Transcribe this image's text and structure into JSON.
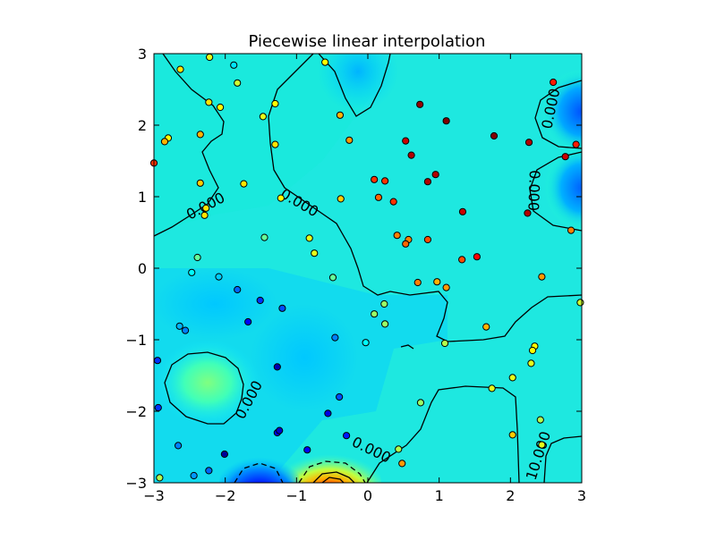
{
  "chart_data": {
    "type": "scatter",
    "title": "Piecewise linear interpolation",
    "xlabel": "",
    "ylabel": "",
    "xlim": [
      -3,
      3
    ],
    "ylim": [
      -3,
      3
    ],
    "xticks": [
      "−3",
      "−2",
      "−1",
      "0",
      "1",
      "2",
      "3"
    ],
    "yticks": [
      "−3",
      "−2",
      "−1",
      "0",
      "1",
      "2",
      "3"
    ],
    "grid": false,
    "colormap": "jet",
    "zrange": [
      -2,
      2
    ],
    "contour_labels": [
      "0.000",
      "0.000",
      "0.000",
      "0.000",
      "0.000",
      "0.000",
      "10.000"
    ],
    "points": [
      {
        "x": -2.22,
        "y": 2.95,
        "z": 0.4
      },
      {
        "x": -2.63,
        "y": 2.78,
        "z": 0.6
      },
      {
        "x": -1.88,
        "y": 2.84,
        "z": -0.6
      },
      {
        "x": -1.83,
        "y": 2.59,
        "z": 0.3
      },
      {
        "x": -0.6,
        "y": 2.88,
        "z": 0.5
      },
      {
        "x": -2.23,
        "y": 2.32,
        "z": 0.6
      },
      {
        "x": -2.07,
        "y": 2.25,
        "z": 0.5
      },
      {
        "x": -1.3,
        "y": 2.3,
        "z": 0.5
      },
      {
        "x": -1.47,
        "y": 2.12,
        "z": 0.4
      },
      {
        "x": -2.8,
        "y": 1.82,
        "z": 0.5
      },
      {
        "x": -2.85,
        "y": 1.77,
        "z": 0.8
      },
      {
        "x": -2.35,
        "y": 1.87,
        "z": 0.8
      },
      {
        "x": -1.3,
        "y": 1.73,
        "z": 0.6
      },
      {
        "x": -3.0,
        "y": 1.47,
        "z": 1.3
      },
      {
        "x": -0.39,
        "y": 2.14,
        "z": 0.8
      },
      {
        "x": -0.26,
        "y": 1.79,
        "z": 0.9
      },
      {
        "x": 0.53,
        "y": 1.78,
        "z": 1.7
      },
      {
        "x": 0.73,
        "y": 2.29,
        "z": 1.9
      },
      {
        "x": 1.1,
        "y": 2.06,
        "z": 2.0
      },
      {
        "x": 1.77,
        "y": 1.85,
        "z": 2.1
      },
      {
        "x": 2.26,
        "y": 1.76,
        "z": 1.8
      },
      {
        "x": 2.6,
        "y": 2.6,
        "z": 1.4
      },
      {
        "x": 2.92,
        "y": 1.73,
        "z": 1.4
      },
      {
        "x": 2.77,
        "y": 1.56,
        "z": 1.7
      },
      {
        "x": 0.61,
        "y": 1.58,
        "z": 1.8
      },
      {
        "x": 0.95,
        "y": 1.31,
        "z": 1.8
      },
      {
        "x": 0.84,
        "y": 1.21,
        "z": 1.8
      },
      {
        "x": 0.09,
        "y": 1.24,
        "z": 1.3
      },
      {
        "x": 0.24,
        "y": 1.22,
        "z": 1.3
      },
      {
        "x": 0.15,
        "y": 0.99,
        "z": 1.1
      },
      {
        "x": 0.36,
        "y": 0.93,
        "z": 1.3
      },
      {
        "x": -0.38,
        "y": 0.97,
        "z": 0.7
      },
      {
        "x": -2.35,
        "y": 1.19,
        "z": 0.7
      },
      {
        "x": -1.74,
        "y": 1.18,
        "z": 0.6
      },
      {
        "x": -1.22,
        "y": 0.98,
        "z": 0.5
      },
      {
        "x": -2.27,
        "y": 0.84,
        "z": 0.6
      },
      {
        "x": -2.29,
        "y": 0.74,
        "z": 0.6
      },
      {
        "x": 1.33,
        "y": 0.79,
        "z": 1.7
      },
      {
        "x": 2.24,
        "y": 0.77,
        "z": 1.8
      },
      {
        "x": 2.85,
        "y": 0.53,
        "z": 1.0
      },
      {
        "x": 0.41,
        "y": 0.46,
        "z": 1.0
      },
      {
        "x": 0.57,
        "y": 0.4,
        "z": 1.0
      },
      {
        "x": 0.53,
        "y": 0.34,
        "z": 1.1
      },
      {
        "x": 0.84,
        "y": 0.4,
        "z": 1.2
      },
      {
        "x": 1.32,
        "y": 0.12,
        "z": 1.2
      },
      {
        "x": 1.53,
        "y": 0.16,
        "z": 1.5
      },
      {
        "x": -1.45,
        "y": 0.43,
        "z": -0.1
      },
      {
        "x": -0.82,
        "y": 0.42,
        "z": 0.4
      },
      {
        "x": -0.75,
        "y": 0.21,
        "z": 0.4
      },
      {
        "x": -2.39,
        "y": 0.15,
        "z": -0.1
      },
      {
        "x": -2.47,
        "y": -0.06,
        "z": -0.5
      },
      {
        "x": -2.09,
        "y": -0.12,
        "z": -0.7
      },
      {
        "x": -0.49,
        "y": -0.13,
        "z": -0.1
      },
      {
        "x": 0.7,
        "y": -0.2,
        "z": 1.0
      },
      {
        "x": 0.97,
        "y": -0.19,
        "z": 0.8
      },
      {
        "x": 1.1,
        "y": -0.27,
        "z": 0.9
      },
      {
        "x": 2.44,
        "y": -0.12,
        "z": 0.9
      },
      {
        "x": -1.83,
        "y": -0.3,
        "z": -1.1
      },
      {
        "x": -1.51,
        "y": -0.45,
        "z": -1.3
      },
      {
        "x": -1.2,
        "y": -0.56,
        "z": -1.2
      },
      {
        "x": 0.23,
        "y": -0.5,
        "z": 0.1
      },
      {
        "x": 0.09,
        "y": -0.64,
        "z": 0.1
      },
      {
        "x": 0.24,
        "y": -0.78,
        "z": 0.1
      },
      {
        "x": -1.68,
        "y": -0.75,
        "z": -1.5
      },
      {
        "x": -2.64,
        "y": -0.81,
        "z": -0.8
      },
      {
        "x": -2.56,
        "y": -0.87,
        "z": -1.0
      },
      {
        "x": -0.46,
        "y": -0.97,
        "z": -1.0
      },
      {
        "x": -0.03,
        "y": -1.04,
        "z": -0.5
      },
      {
        "x": 1.08,
        "y": -1.05,
        "z": 0.2
      },
      {
        "x": 1.66,
        "y": -0.82,
        "z": 0.8
      },
      {
        "x": 2.34,
        "y": -1.09,
        "z": 0.5
      },
      {
        "x": 2.31,
        "y": -1.15,
        "z": 0.5
      },
      {
        "x": 2.98,
        "y": -0.48,
        "z": 0.3
      },
      {
        "x": -2.95,
        "y": -1.29,
        "z": -1.3
      },
      {
        "x": -1.27,
        "y": -1.38,
        "z": -1.8
      },
      {
        "x": 2.29,
        "y": -1.33,
        "z": 0.4
      },
      {
        "x": 2.03,
        "y": -1.53,
        "z": 0.4
      },
      {
        "x": 1.74,
        "y": -1.68,
        "z": 0.4
      },
      {
        "x": -0.4,
        "y": -1.8,
        "z": -1.2
      },
      {
        "x": 0.74,
        "y": -1.88,
        "z": 0.1
      },
      {
        "x": -2.94,
        "y": -1.95,
        "z": -1.3
      },
      {
        "x": -0.56,
        "y": -2.03,
        "z": -1.6
      },
      {
        "x": 2.42,
        "y": -2.12,
        "z": 0.2
      },
      {
        "x": 2.03,
        "y": -2.33,
        "z": 0.7
      },
      {
        "x": -1.27,
        "y": -2.3,
        "z": -1.6
      },
      {
        "x": -1.24,
        "y": -2.27,
        "z": -1.7
      },
      {
        "x": -0.3,
        "y": -2.34,
        "z": -1.4
      },
      {
        "x": -2.66,
        "y": -2.48,
        "z": -1.0
      },
      {
        "x": 0.43,
        "y": -2.53,
        "z": 0.2
      },
      {
        "x": -0.85,
        "y": -2.54,
        "z": -1.5
      },
      {
        "x": -2.01,
        "y": -2.6,
        "z": -1.9
      },
      {
        "x": 2.44,
        "y": -2.47,
        "z": 0.4
      },
      {
        "x": -2.23,
        "y": -2.83,
        "z": -1.1
      },
      {
        "x": -2.44,
        "y": -2.9,
        "z": -0.9
      },
      {
        "x": -2.92,
        "y": -2.93,
        "z": 0.2
      },
      {
        "x": 0.48,
        "y": -2.73,
        "z": 0.9
      }
    ]
  }
}
